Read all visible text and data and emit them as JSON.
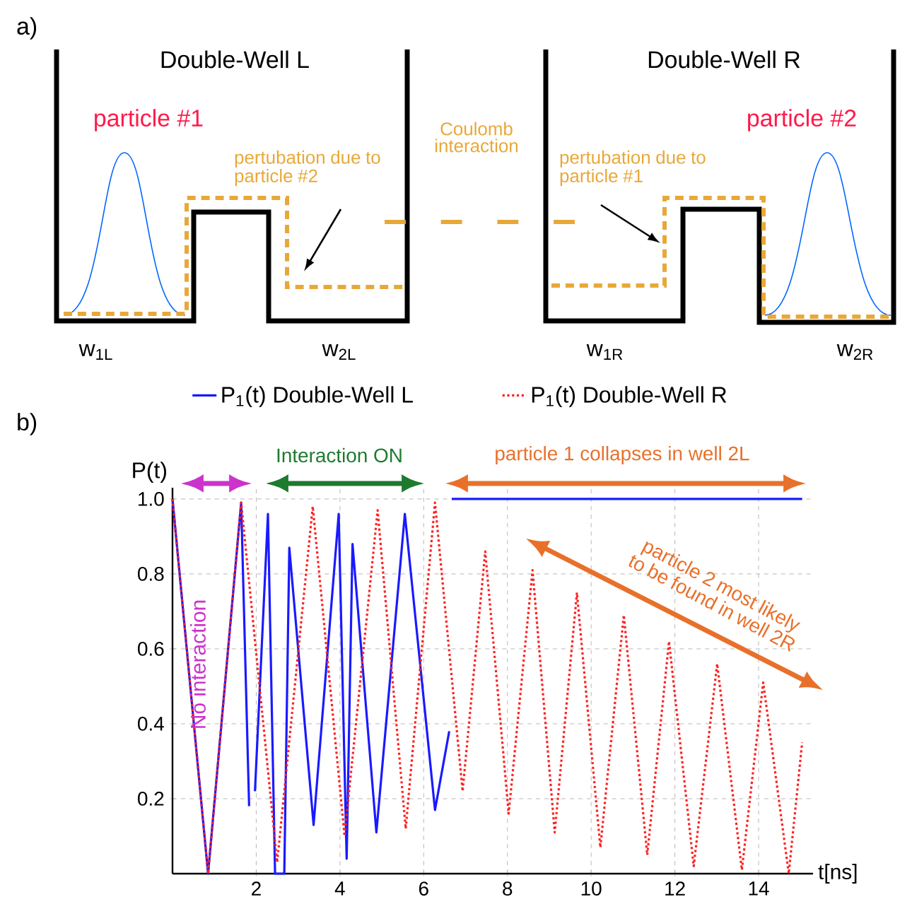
{
  "chart_data": [
    {
      "type": "other",
      "title": "a)",
      "annotations": [
        "Double-Well L",
        "Double-Well R",
        "particle #1",
        "particle #2",
        "Coulomb interaction",
        "pertubation due to particle #2",
        "pertubation due to particle #1",
        "w$_{1L}$",
        "w$_{2L}$",
        "w$_{1R}$",
        "w$_{2R}$"
      ]
    },
    {
      "type": "line",
      "title": "b)",
      "xlabel": "t[ns]",
      "ylabel": "P(t)",
      "xlim": [
        0,
        15.3
      ],
      "ylim": [
        0,
        1.03
      ],
      "xticks": [
        2,
        4,
        6,
        8,
        10,
        12,
        14
      ],
      "yticks": [
        0.2,
        0.4,
        0.6,
        0.8,
        {
          "value": 1,
          "label": "1.0"
        }
      ],
      "grid": true,
      "legend": "top",
      "series": [
        {
          "name": "P$_{1}$(t) Double-Well L",
          "color": "#1a1aff",
          "line_style": "solid",
          "x": [
            0,
            0.85,
            1.64,
            1.83,
            1.9,
            1.97,
            2.28,
            2.45,
            2.67,
            2.79,
            3.37,
            3.97,
            4.16,
            4.3,
            4.87,
            5.55,
            6.27,
            6.61,
            6.64,
            6.67,
            15.04
          ],
          "values": [
            1,
            0,
            0.99,
            0.18,
            null,
            0.22,
            0.96,
            0,
            0,
            0.87,
            0.13,
            0.96,
            0.04,
            0.88,
            0.11,
            0.96,
            0.17,
            0.38,
            null,
            1,
            1
          ]
        },
        {
          "name": "P$_{1}$(t) Double-Well R",
          "color": "#ff2020",
          "line_style": "dotted",
          "x": [
            0,
            0.85,
            1.64,
            2.5,
            3.35,
            4.11,
            4.9,
            5.57,
            6.27,
            6.93,
            7.47,
            8.03,
            8.6,
            9.13,
            9.66,
            10.22,
            10.78,
            11.34,
            11.86,
            12.45,
            13.01,
            13.6,
            14.11,
            14.72,
            15.04
          ],
          "values": [
            1,
            0,
            0.99,
            0.03,
            0.98,
            0.1,
            0.97,
            0.12,
            0.99,
            0.22,
            0.86,
            0.16,
            0.81,
            0.11,
            0.75,
            0.07,
            0.69,
            0.05,
            0.62,
            0.02,
            0.56,
            0.01,
            0.51,
            0,
            0.35
          ]
        }
      ],
      "annotations": [
        "No interaction",
        "Interaction ON",
        "particle 1 collapses in well 2L",
        "particle 2 most likely to be found in well 2R"
      ]
    }
  ]
}
